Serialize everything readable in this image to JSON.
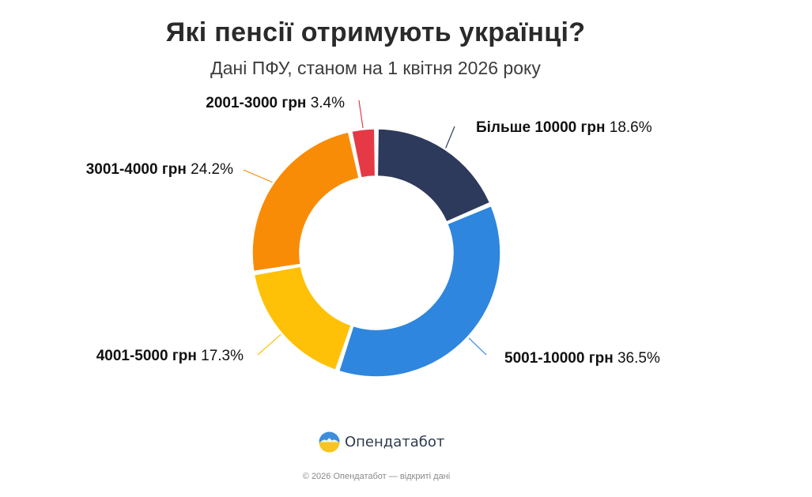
{
  "header": {
    "title": "Які пенсії отримують українці?",
    "subtitle": "Дані ПФУ, станом на 1 квітня 2026 року"
  },
  "chart_data": {
    "type": "pie",
    "donut": true,
    "title": "Які пенсії отримують українці?",
    "subtitle": "Дані ПФУ, станом на 1 квітня 2026 року",
    "unit": "%",
    "slices": [
      {
        "label": "Більше 10000 грн",
        "value": 18.6,
        "value_label": "18.6%",
        "color": "#2d3a5c"
      },
      {
        "label": "5001-10000 грн",
        "value": 36.5,
        "value_label": "36.5%",
        "color": "#2e86de"
      },
      {
        "label": "4001-5000 грн",
        "value": 17.3,
        "value_label": "17.3%",
        "color": "#ffc107"
      },
      {
        "label": "3001-4000 грн",
        "value": 24.2,
        "value_label": "24.2%",
        "color": "#f98c07"
      },
      {
        "label": "2001-3000 грн",
        "value": 3.4,
        "value_label": "3.4%",
        "color": "#e63946"
      }
    ]
  },
  "brand": {
    "name": "Опендатабот",
    "logo_icon": "opendatabot-logo-icon"
  },
  "footer": {
    "text": "© 2026 Опендатабот — відкриті дані"
  }
}
